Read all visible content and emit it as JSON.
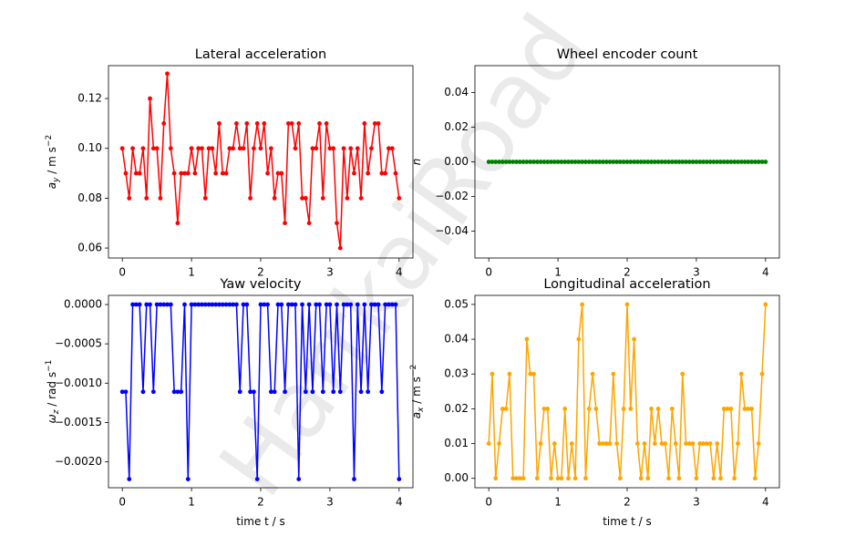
{
  "watermark": "HarrkaiRoad",
  "chart_data": [
    {
      "type": "line",
      "title": "Lateral acceleration",
      "ylabel": {
        "symbol": "a",
        "sub": "y",
        "unit": " / m s",
        "sup": "−2"
      },
      "color": "#ff0000",
      "x": [
        0,
        0.05,
        0.1,
        0.15,
        0.2,
        0.25,
        0.3,
        0.35,
        0.4,
        0.45,
        0.5,
        0.55,
        0.6,
        0.65,
        0.7,
        0.75,
        0.8,
        0.85,
        0.9,
        0.95,
        1,
        1.05,
        1.1,
        1.15,
        1.2,
        1.25,
        1.3,
        1.35,
        1.4,
        1.45,
        1.5,
        1.55,
        1.6,
        1.65,
        1.7,
        1.75,
        1.8,
        1.85,
        1.9,
        1.95,
        2,
        2.05,
        2.1,
        2.15,
        2.2,
        2.25,
        2.3,
        2.35,
        2.4,
        2.45,
        2.5,
        2.55,
        2.6,
        2.65,
        2.7,
        2.75,
        2.8,
        2.85,
        2.9,
        2.95,
        3,
        3.05,
        3.1,
        3.15,
        3.2,
        3.25,
        3.3,
        3.35,
        3.4,
        3.45,
        3.5,
        3.55,
        3.6,
        3.65,
        3.7,
        3.75,
        3.8,
        3.85,
        3.9,
        3.95,
        4
      ],
      "values": [
        0.1,
        0.09,
        0.08,
        0.1,
        0.09,
        0.09,
        0.1,
        0.08,
        0.12,
        0.1,
        0.1,
        0.08,
        0.11,
        0.13,
        0.1,
        0.09,
        0.07,
        0.09,
        0.09,
        0.09,
        0.1,
        0.09,
        0.1,
        0.1,
        0.08,
        0.1,
        0.1,
        0.09,
        0.11,
        0.09,
        0.09,
        0.1,
        0.1,
        0.11,
        0.1,
        0.1,
        0.11,
        0.08,
        0.1,
        0.11,
        0.1,
        0.11,
        0.09,
        0.1,
        0.08,
        0.09,
        0.09,
        0.07,
        0.11,
        0.11,
        0.1,
        0.11,
        0.08,
        0.08,
        0.07,
        0.1,
        0.1,
        0.11,
        0.08,
        0.11,
        0.1,
        0.1,
        0.07,
        0.06,
        0.1,
        0.08,
        0.1,
        0.09,
        0.1,
        0.08,
        0.11,
        0.09,
        0.1,
        0.11,
        0.11,
        0.09,
        0.09,
        0.1,
        0.1,
        0.09,
        0.08
      ],
      "xlim": [
        -0.2,
        4.2
      ],
      "xticks": [
        0,
        1,
        2,
        3,
        4
      ],
      "ylim": [
        0.056,
        0.1332
      ],
      "yticks": [
        0.06,
        0.08,
        {
          "value": 0.1,
          "label": "0.10"
        },
        0.12
      ]
    },
    {
      "type": "line",
      "title": "Wheel encoder count",
      "ylabel": {
        "symbol": "n"
      },
      "color": "#008000",
      "x": [
        0,
        0.05,
        0.1,
        0.15,
        0.2,
        0.25,
        0.3,
        0.35,
        0.4,
        0.45,
        0.5,
        0.55,
        0.6,
        0.65,
        0.7,
        0.75,
        0.8,
        0.85,
        0.9,
        0.95,
        1,
        1.05,
        1.1,
        1.15,
        1.2,
        1.25,
        1.3,
        1.35,
        1.4,
        1.45,
        1.5,
        1.55,
        1.6,
        1.65,
        1.7,
        1.75,
        1.8,
        1.85,
        1.9,
        1.95,
        2,
        2.05,
        2.1,
        2.15,
        2.2,
        2.25,
        2.3,
        2.35,
        2.4,
        2.45,
        2.5,
        2.55,
        2.6,
        2.65,
        2.7,
        2.75,
        2.8,
        2.85,
        2.9,
        2.95,
        3,
        3.05,
        3.1,
        3.15,
        3.2,
        3.25,
        3.3,
        3.35,
        3.4,
        3.45,
        3.5,
        3.55,
        3.6,
        3.65,
        3.7,
        3.75,
        3.8,
        3.85,
        3.9,
        3.95,
        4
      ],
      "values": [
        0,
        0,
        0,
        0,
        0,
        0,
        0,
        0,
        0,
        0,
        0,
        0,
        0,
        0,
        0,
        0,
        0,
        0,
        0,
        0,
        0,
        0,
        0,
        0,
        0,
        0,
        0,
        0,
        0,
        0,
        0,
        0,
        0,
        0,
        0,
        0,
        0,
        0,
        0,
        0,
        0,
        0,
        0,
        0,
        0,
        0,
        0,
        0,
        0,
        0,
        0,
        0,
        0,
        0,
        0,
        0,
        0,
        0,
        0,
        0,
        0,
        0,
        0,
        0,
        0,
        0,
        0,
        0,
        0,
        0,
        0,
        0,
        0,
        0,
        0,
        0,
        0,
        0,
        0,
        0,
        0
      ],
      "xlim": [
        -0.2,
        4.2
      ],
      "xticks": [
        0,
        1,
        2,
        3,
        4
      ],
      "ylim": [
        -0.0555,
        0.0555
      ],
      "yticks": [
        {
          "value": -0.04,
          "label": "−0.04"
        },
        {
          "value": -0.02,
          "label": "−0.02"
        },
        {
          "value": 0,
          "label": "0.00"
        },
        0.02,
        0.04
      ]
    },
    {
      "type": "line",
      "title": "Yaw velocity",
      "ylabel": {
        "symbol": "ω",
        "sub": "z",
        "unit": " / rad s",
        "sup": "−1"
      },
      "xlabel": "time t / s",
      "color": "#0000ff",
      "x": [
        0,
        0.05,
        0.1,
        0.15,
        0.2,
        0.25,
        0.3,
        0.35,
        0.4,
        0.45,
        0.5,
        0.55,
        0.6,
        0.65,
        0.7,
        0.75,
        0.8,
        0.85,
        0.9,
        0.95,
        1,
        1.05,
        1.1,
        1.15,
        1.2,
        1.25,
        1.3,
        1.35,
        1.4,
        1.45,
        1.5,
        1.55,
        1.6,
        1.65,
        1.7,
        1.75,
        1.8,
        1.85,
        1.9,
        1.95,
        2,
        2.05,
        2.1,
        2.15,
        2.2,
        2.25,
        2.3,
        2.35,
        2.4,
        2.45,
        2.5,
        2.55,
        2.6,
        2.65,
        2.7,
        2.75,
        2.8,
        2.85,
        2.9,
        2.95,
        3,
        3.05,
        3.1,
        3.15,
        3.2,
        3.25,
        3.3,
        3.35,
        3.4,
        3.45,
        3.5,
        3.55,
        3.6,
        3.65,
        3.7,
        3.75,
        3.8,
        3.85,
        3.9,
        3.95,
        4
      ],
      "values": [
        -0.00111,
        -0.00111,
        -0.00222,
        0,
        0,
        0,
        -0.00111,
        0,
        0,
        -0.00111,
        0,
        0,
        0,
        0,
        0,
        -0.00111,
        -0.00111,
        -0.00111,
        0,
        -0.00222,
        0,
        0,
        0,
        0,
        0,
        0,
        0,
        0,
        0,
        0,
        0,
        0,
        0,
        0,
        -0.00111,
        0,
        0,
        -0.00111,
        -0.00111,
        -0.00222,
        0,
        0,
        0,
        -0.00111,
        -0.00111,
        0,
        0,
        -0.00111,
        0,
        0,
        0,
        -0.00222,
        0,
        -0.00111,
        0,
        -0.00111,
        0,
        0,
        -0.00111,
        0,
        0,
        -0.00111,
        0,
        -0.00111,
        0,
        0,
        0,
        -0.00222,
        0,
        -0.00111,
        0,
        -0.00111,
        0,
        0,
        0,
        -0.00111,
        0,
        0,
        0,
        0,
        -0.00222
      ],
      "xlim": [
        -0.2,
        4.2
      ],
      "xticks": [
        0,
        1,
        2,
        3,
        4
      ],
      "ylim": [
        -0.00233,
        0.000116
      ],
      "yticks": [
        {
          "value": -0.002,
          "label": "−0.0020"
        },
        {
          "value": -0.0015,
          "label": "−0.0015"
        },
        {
          "value": -0.001,
          "label": "−0.0010"
        },
        {
          "value": -0.0005,
          "label": "−0.0005"
        },
        {
          "value": 0,
          "label": "0.0000"
        }
      ]
    },
    {
      "type": "line",
      "title": "Longitudinal acceleration",
      "ylabel": {
        "symbol": "a",
        "sub": "x",
        "unit": " / m s",
        "sup": "−2"
      },
      "xlabel": "time t / s",
      "color": "#ffa500",
      "x": [
        0,
        0.05,
        0.1,
        0.15,
        0.2,
        0.25,
        0.3,
        0.35,
        0.4,
        0.45,
        0.5,
        0.55,
        0.6,
        0.65,
        0.7,
        0.75,
        0.8,
        0.85,
        0.9,
        0.95,
        1,
        1.05,
        1.1,
        1.15,
        1.2,
        1.25,
        1.3,
        1.35,
        1.4,
        1.45,
        1.5,
        1.55,
        1.6,
        1.65,
        1.7,
        1.75,
        1.8,
        1.85,
        1.9,
        1.95,
        2,
        2.05,
        2.1,
        2.15,
        2.2,
        2.25,
        2.3,
        2.35,
        2.4,
        2.45,
        2.5,
        2.55,
        2.6,
        2.65,
        2.7,
        2.75,
        2.8,
        2.85,
        2.9,
        2.95,
        3,
        3.05,
        3.1,
        3.15,
        3.2,
        3.25,
        3.3,
        3.35,
        3.4,
        3.45,
        3.5,
        3.55,
        3.6,
        3.65,
        3.7,
        3.75,
        3.8,
        3.85,
        3.9,
        3.95,
        4
      ],
      "values": [
        0.01,
        0.03,
        0,
        0.01,
        0.02,
        0.02,
        0.03,
        0,
        0,
        0,
        0,
        0.04,
        0.03,
        0.03,
        0,
        0.01,
        0.02,
        0.02,
        0,
        0.01,
        0,
        0,
        0.02,
        0,
        0.01,
        0,
        0.04,
        0.05,
        0,
        0.02,
        0.03,
        0.02,
        0.01,
        0.01,
        0.01,
        0.01,
        0.03,
        0.01,
        0,
        0.02,
        0.05,
        0.02,
        0.04,
        0.01,
        0,
        0.01,
        0,
        0.02,
        0.01,
        0.02,
        0.01,
        0.01,
        0,
        0.02,
        0.01,
        0,
        0.03,
        0.01,
        0.01,
        0.01,
        0,
        0.01,
        0.01,
        0.01,
        0.01,
        0,
        0.01,
        0,
        0.02,
        0.02,
        0.02,
        0,
        0.01,
        0.03,
        0.02,
        0.02,
        0.02,
        0,
        0.01,
        0.03,
        0.05
      ],
      "xlim": [
        -0.2,
        4.2
      ],
      "xticks": [
        0,
        1,
        2,
        3,
        4
      ],
      "ylim": [
        -0.0027,
        0.0526
      ],
      "yticks": [
        {
          "value": 0,
          "label": "0.00"
        },
        0.01,
        0.02,
        0.03,
        0.04,
        0.05
      ]
    }
  ]
}
